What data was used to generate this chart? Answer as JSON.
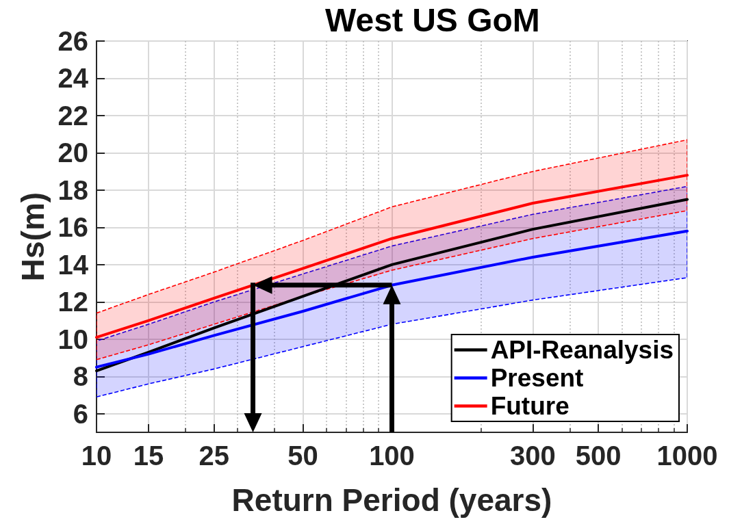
{
  "chart_data": {
    "type": "line",
    "title": "West US GoM",
    "xlabel": "Return Period (years)",
    "ylabel": "Hs(m)",
    "x": [
      10,
      15,
      25,
      50,
      100,
      300,
      1000
    ],
    "series": [
      {
        "name": "API-Reanalysis",
        "color": "#000000",
        "values": [
          8.3,
          9.3,
          10.6,
          12.3,
          14.0,
          15.9,
          17.5
        ]
      },
      {
        "name": "Present",
        "color": "#0000ff",
        "values": [
          8.5,
          9.2,
          10.2,
          11.5,
          12.9,
          14.4,
          15.8
        ],
        "lower": [
          6.9,
          7.6,
          8.4,
          9.6,
          10.8,
          12.1,
          13.3
        ],
        "upper": [
          9.9,
          10.8,
          12.0,
          13.5,
          15.0,
          16.7,
          18.2
        ]
      },
      {
        "name": "Future",
        "color": "#ff0000",
        "values": [
          10.1,
          11.0,
          12.2,
          13.8,
          15.4,
          17.3,
          18.8
        ],
        "lower": [
          8.9,
          9.7,
          10.8,
          12.3,
          13.7,
          15.4,
          16.9
        ],
        "upper": [
          11.4,
          12.4,
          13.6,
          15.3,
          17.1,
          19.0,
          20.7
        ]
      }
    ],
    "xlim": [
      10,
      1000
    ],
    "ylim": [
      5,
      26
    ],
    "xticks": [
      10,
      15,
      {
        "value": 20,
        "label": null
      },
      25,
      {
        "value": 30,
        "label": null
      },
      {
        "value": 40,
        "label": null
      },
      50,
      {
        "value": 60,
        "label": null
      },
      {
        "value": 70,
        "label": null
      },
      {
        "value": 80,
        "label": null
      },
      {
        "value": 90,
        "label": null
      },
      100,
      {
        "value": 200,
        "label": null
      },
      300,
      {
        "value": 400,
        "label": null
      },
      500,
      {
        "value": 600,
        "label": null
      },
      {
        "value": 700,
        "label": null
      },
      {
        "value": 800,
        "label": null
      },
      {
        "value": 900,
        "label": null
      },
      1000
    ],
    "yticks": [
      6,
      8,
      10,
      12,
      14,
      16,
      18,
      20,
      22,
      24,
      26
    ],
    "log": "x",
    "grid": true,
    "legend": "bottom right",
    "marker": "none"
  }
}
